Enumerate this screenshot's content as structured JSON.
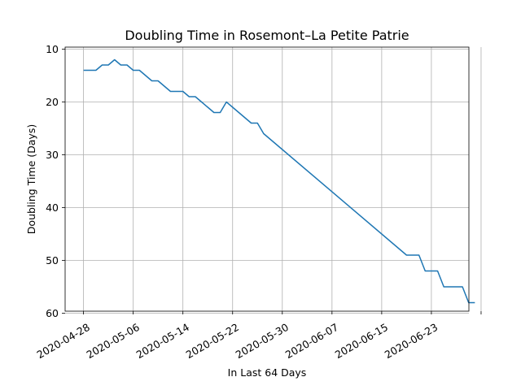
{
  "chart_data": {
    "type": "line",
    "title": "Doubling Time in  Rosemont–La Petite Patrie",
    "xlabel": "In Last 64 Days",
    "ylabel": "Doubling Time (Days)",
    "y_inverted": true,
    "ylim": [
      60,
      10
    ],
    "xlim": [
      "2020-04-28",
      "2020-07-02"
    ],
    "grid": true,
    "x_tick_labels": [
      "2020-04-28",
      "2020-05-06",
      "2020-05-14",
      "2020-05-22",
      "2020-05-30",
      "2020-06-07",
      "2020-06-15",
      "2020-06-23",
      ""
    ],
    "x_ticks": [
      "2020-04-28",
      "2020-05-06",
      "2020-05-14",
      "2020-05-22",
      "2020-05-30",
      "2020-06-07",
      "2020-06-15",
      "2020-06-23",
      "2020-07-01"
    ],
    "y_ticks": [
      10,
      20,
      30,
      40,
      50,
      60
    ],
    "series": [
      {
        "color": "#1f77b4",
        "points": [
          [
            "2020-04-28",
            14
          ],
          [
            "2020-04-29",
            14
          ],
          [
            "2020-04-30",
            14
          ],
          [
            "2020-05-01",
            13
          ],
          [
            "2020-05-02",
            13
          ],
          [
            "2020-05-03",
            12
          ],
          [
            "2020-05-04",
            13
          ],
          [
            "2020-05-05",
            13
          ],
          [
            "2020-05-06",
            14
          ],
          [
            "2020-05-07",
            14
          ],
          [
            "2020-05-08",
            15
          ],
          [
            "2020-05-09",
            16
          ],
          [
            "2020-05-10",
            16
          ],
          [
            "2020-05-11",
            17
          ],
          [
            "2020-05-12",
            18
          ],
          [
            "2020-05-13",
            18
          ],
          [
            "2020-05-14",
            18
          ],
          [
            "2020-05-15",
            19
          ],
          [
            "2020-05-16",
            19
          ],
          [
            "2020-05-17",
            20
          ],
          [
            "2020-05-18",
            21
          ],
          [
            "2020-05-19",
            22
          ],
          [
            "2020-05-20",
            22
          ],
          [
            "2020-05-21",
            20
          ],
          [
            "2020-05-22",
            21
          ],
          [
            "2020-05-23",
            22
          ],
          [
            "2020-05-24",
            23
          ],
          [
            "2020-05-25",
            24
          ],
          [
            "2020-05-26",
            24
          ],
          [
            "2020-05-27",
            26
          ],
          [
            "2020-06-19",
            49
          ],
          [
            "2020-06-20",
            49
          ],
          [
            "2020-06-21",
            49
          ],
          [
            "2020-06-22",
            52
          ],
          [
            "2020-06-23",
            52
          ],
          [
            "2020-06-24",
            52
          ],
          [
            "2020-06-25",
            55
          ],
          [
            "2020-06-26",
            55
          ],
          [
            "2020-06-27",
            55
          ],
          [
            "2020-06-28",
            55
          ],
          [
            "2020-06-29",
            58
          ],
          [
            "2020-06-30",
            58
          ]
        ]
      }
    ]
  }
}
